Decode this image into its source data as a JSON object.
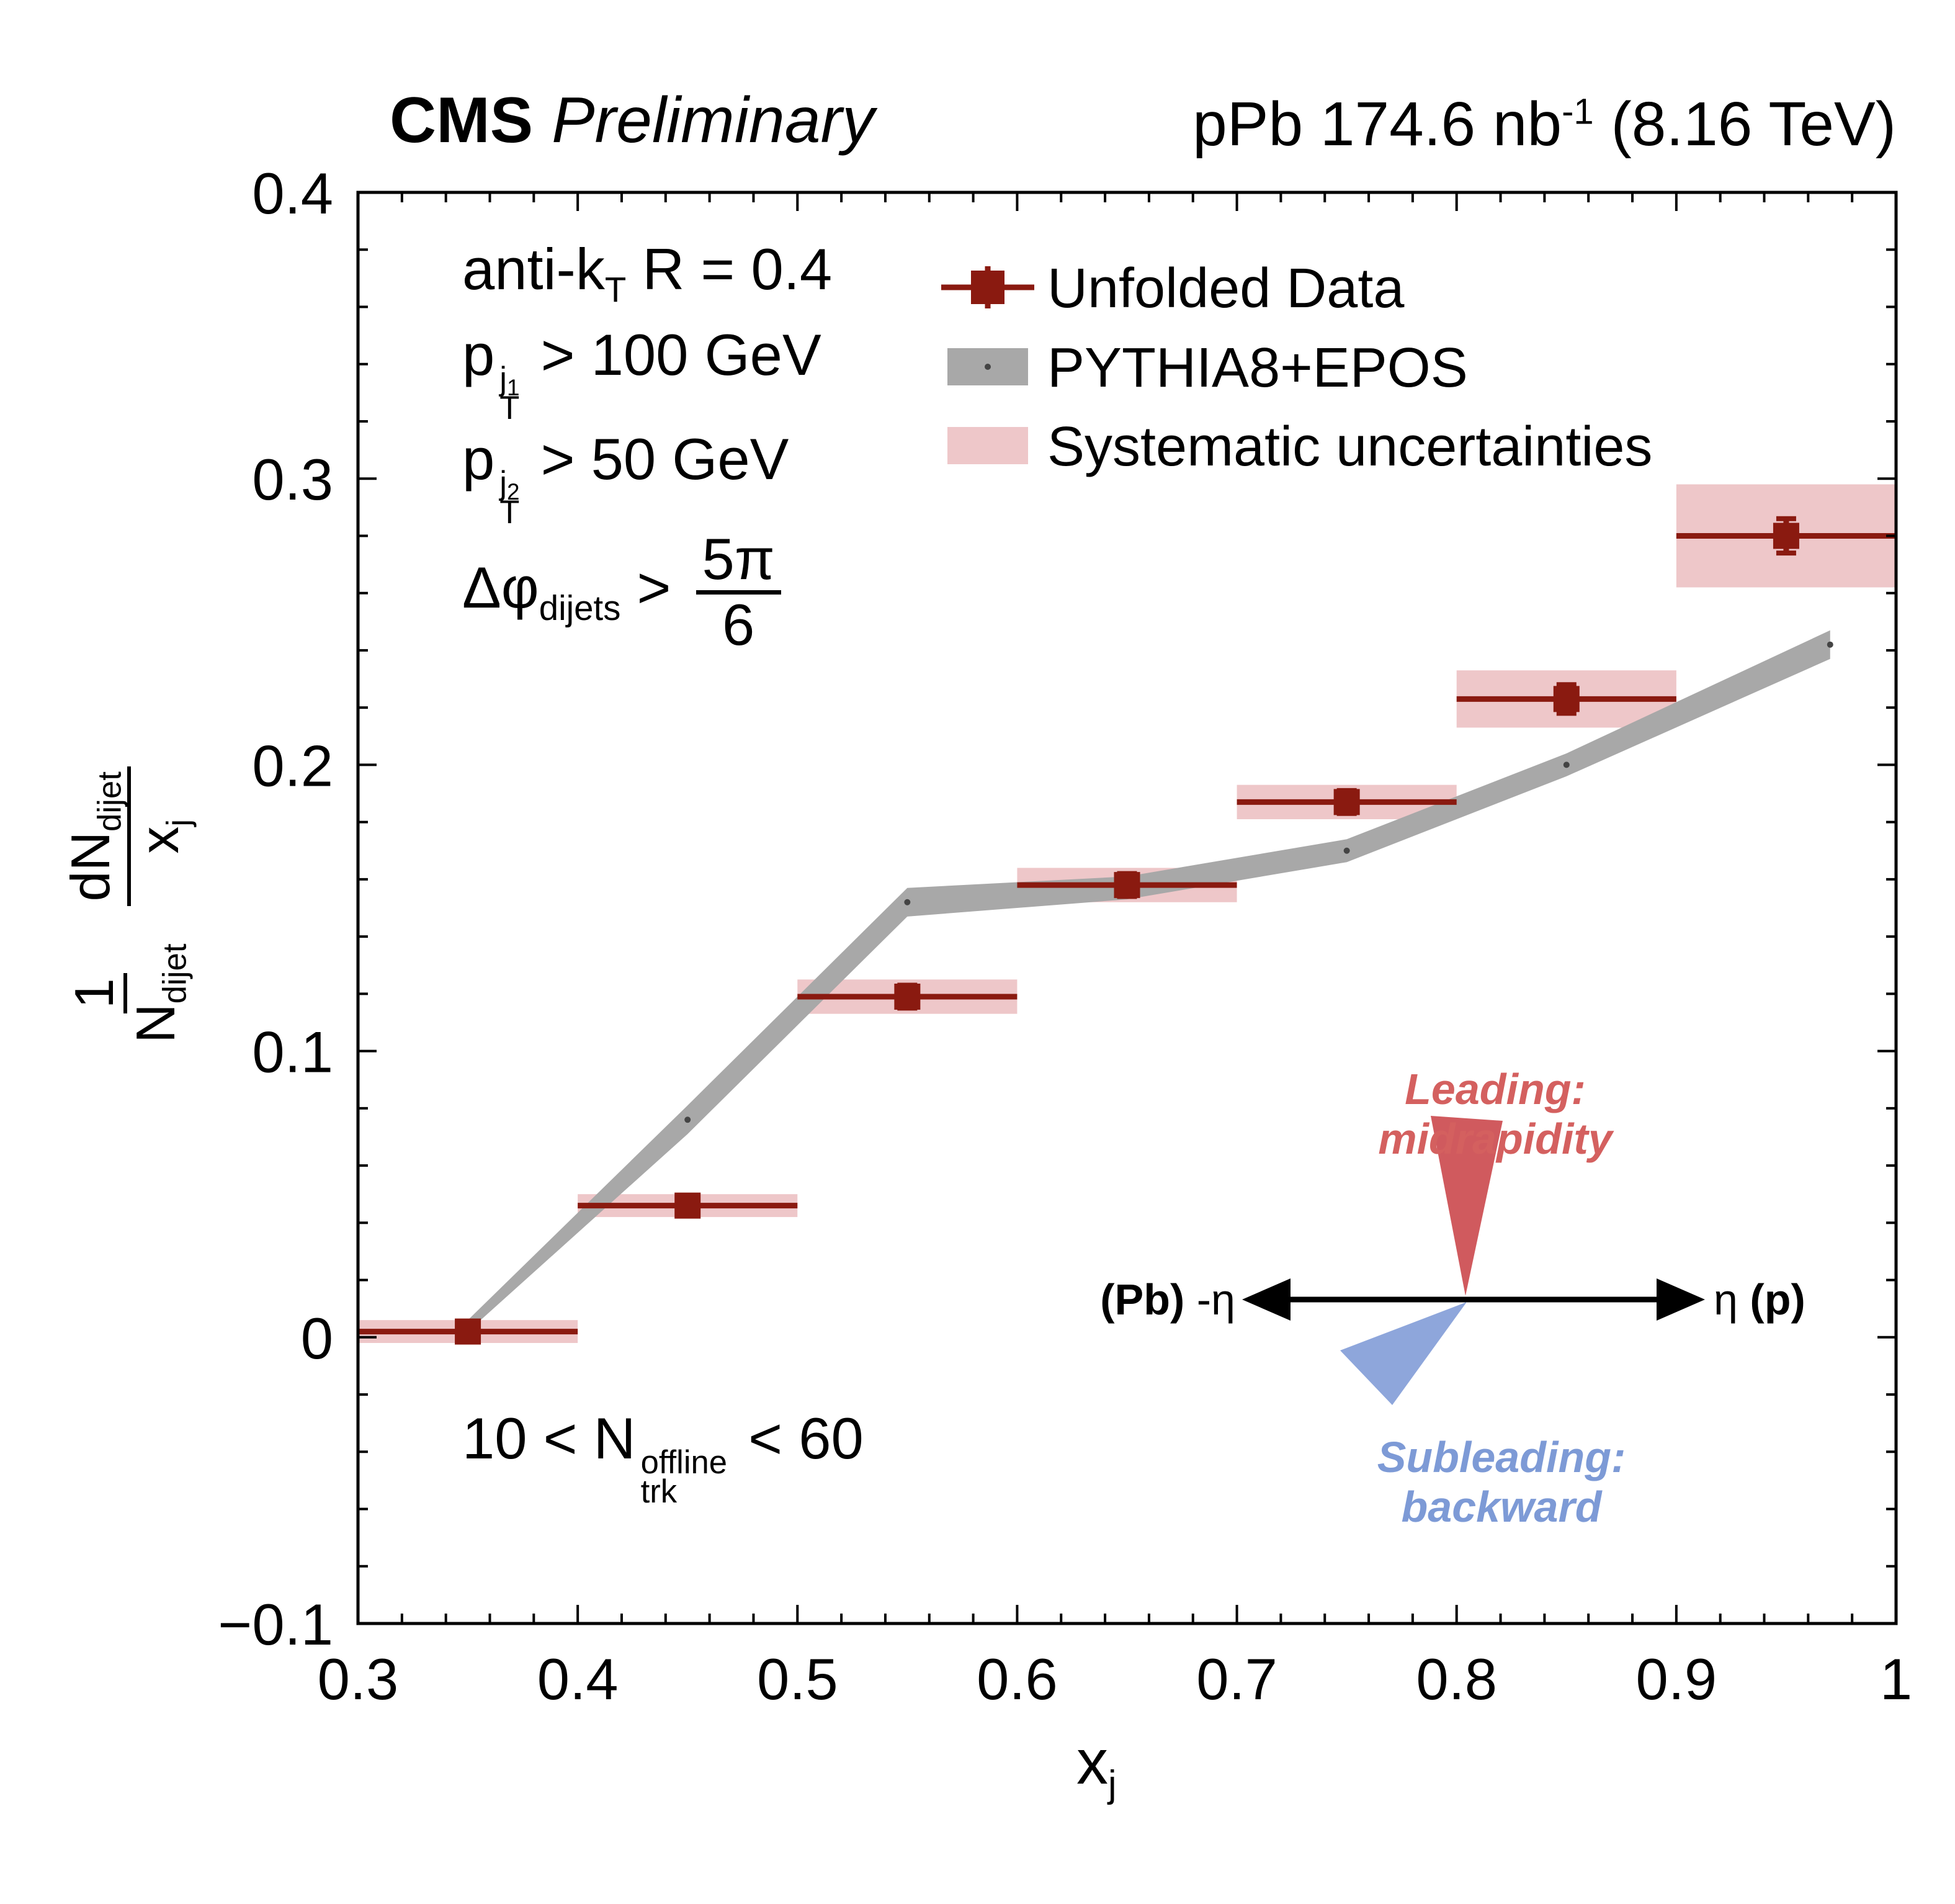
{
  "header": {
    "experiment": "CMS",
    "status": "Preliminary",
    "lumi_prefix": "pPb 174.6 nb",
    "lumi_exp": "-1",
    "lumi_suffix": " (8.16 TeV)"
  },
  "conditions": {
    "antikt_pre": "anti-k",
    "antikt_sub": "T",
    "antikt_post": " R = 0.4",
    "pt1_base": "p",
    "pt1_sup_main": "j",
    "pt1_sup_sub": "1",
    "pt1_sub": "T",
    "pt1_rest": " > 100 GeV",
    "pt2_base": "p",
    "pt2_sup_main": "j",
    "pt2_sup_sub": "2",
    "pt2_sub": "T",
    "pt2_rest": " > 50 GeV",
    "dphi_base": "Δφ",
    "dphi_sub": "dijets",
    "dphi_gt": " > ",
    "dphi_num": "5π",
    "dphi_den": "6"
  },
  "ntrk": {
    "pre": "10 < N",
    "sup": "offline",
    "sub": "trk",
    "post": " < 60"
  },
  "axes": {
    "x_label_base": "x",
    "x_label_sub": "j",
    "y_frac1_num": "1",
    "y_frac1_den_base": "N",
    "y_frac1_den_sub": "dijet",
    "y_frac2_num_base": "dN",
    "y_frac2_num_sub": "dijet",
    "y_frac2_den_base": "x",
    "y_frac2_den_sub": "j"
  },
  "legend": {
    "entries": [
      {
        "label": "Unfolded Data",
        "type": "data-marker"
      },
      {
        "label": "PYTHIA8+EPOS",
        "type": "band"
      },
      {
        "label": "Systematic uncertainties",
        "type": "sys-box"
      }
    ]
  },
  "inset": {
    "leading_label": "Leading: midrapidity",
    "subleading_label": "Subleading: backward",
    "left_bold": "(Pb)",
    "left_plain": " -η",
    "right_plain": "η ",
    "right_bold": "(p)"
  },
  "colors": {
    "data": "#8a1a10",
    "sys_box": "#eec7c9",
    "band": "#a8a8a8",
    "band_dot": "#444444",
    "leading_cone": "#d05a5e",
    "subleading_cone": "#8ea6db",
    "leading_text": "#d4605f",
    "subleading_text": "#7d9ad6",
    "frame": "#000000"
  },
  "chart_data": {
    "type": "scatter",
    "title": "CMS Preliminary  pPb 174.6 nb^-1 (8.16 TeV)",
    "xlabel": "x_j",
    "ylabel": "(1/N_dijet) dN_dijet/x_j",
    "xlim": [
      0.3,
      1.0
    ],
    "ylim": [
      -0.1,
      0.4
    ],
    "minor_divisions": 5,
    "x_ticks": [
      [
        0.3,
        "0.3"
      ],
      [
        0.4,
        "0.4"
      ],
      [
        0.5,
        "0.5"
      ],
      [
        0.6,
        "0.6"
      ],
      [
        0.7,
        "0.7"
      ],
      [
        0.8,
        "0.8"
      ],
      [
        0.9,
        "0.9"
      ],
      [
        1,
        "1"
      ]
    ],
    "y_ticks": [
      [
        -0.1,
        "−0.1"
      ],
      [
        0,
        "0"
      ],
      [
        0.1,
        "0.1"
      ],
      [
        0.2,
        "0.2"
      ],
      [
        0.3,
        "0.3"
      ],
      [
        0.4,
        "0.4"
      ]
    ],
    "series": [
      {
        "name": "Unfolded Data",
        "type": "points",
        "points": [
          {
            "x": 0.35,
            "xlo": 0.3,
            "xhi": 0.4,
            "y": 0.002,
            "stat": 0.003,
            "sys": 0.004
          },
          {
            "x": 0.45,
            "xlo": 0.4,
            "xhi": 0.5,
            "y": 0.046,
            "stat": 0.003,
            "sys": 0.004
          },
          {
            "x": 0.55,
            "xlo": 0.5,
            "xhi": 0.6,
            "y": 0.119,
            "stat": 0.004,
            "sys": 0.006
          },
          {
            "x": 0.65,
            "xlo": 0.6,
            "xhi": 0.7,
            "y": 0.158,
            "stat": 0.004,
            "sys": 0.006
          },
          {
            "x": 0.75,
            "xlo": 0.7,
            "xhi": 0.8,
            "y": 0.187,
            "stat": 0.004,
            "sys": 0.006
          },
          {
            "x": 0.85,
            "xlo": 0.8,
            "xhi": 0.9,
            "y": 0.223,
            "stat": 0.005,
            "sys": 0.01
          },
          {
            "x": 0.95,
            "xlo": 0.9,
            "xhi": 1.0,
            "y": 0.28,
            "stat": 0.006,
            "sys": 0.018
          }
        ]
      },
      {
        "name": "PYTHIA8+EPOS",
        "type": "band",
        "x": [
          0.35,
          0.45,
          0.55,
          0.65,
          0.75,
          0.85,
          0.97
        ],
        "y": [
          0.004,
          0.076,
          0.152,
          0.157,
          0.17,
          0.2,
          0.242
        ],
        "halfwidth": [
          0.002,
          0.005,
          0.005,
          0.004,
          0.004,
          0.004,
          0.005
        ]
      },
      {
        "name": "Systematic uncertainties",
        "type": "boxes"
      }
    ]
  }
}
